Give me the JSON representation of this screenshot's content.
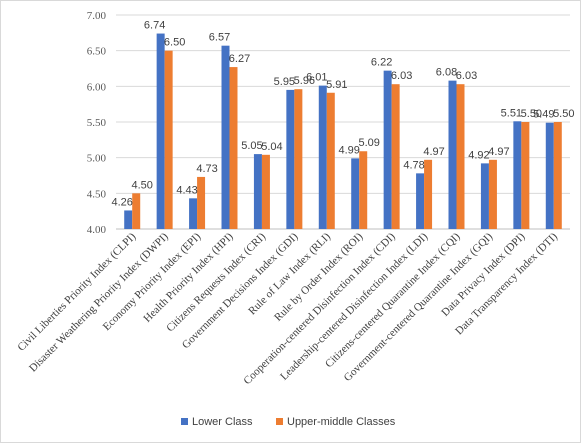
{
  "chart_data": {
    "type": "bar",
    "categories": [
      "Civil Liberties Priority Index (CLPI)",
      "Disaster Weathering Priority Index (DWPI)",
      "Economy Priority Index (EPI)",
      "Health Priority Index (HPI)",
      "Citizens Requests Index (CRI)",
      "Government Decisions Index (GDI)",
      "Rule of Law Index (RLI)",
      "Rule by Order Index (ROI)",
      "Cooperation-centered Disinfection Index (CDI)",
      "Leadership-centered Disinfection Index (LDI)",
      "Citizens-centered Quarantine Index (CQI)",
      "Government-centered Quarantine Index (GQI)",
      "Data Privacy Index (DPI)",
      "Data Transparency Index (DTI)"
    ],
    "series": [
      {
        "name": "Lower Class",
        "color": "#4472c4",
        "values": [
          4.26,
          6.74,
          4.43,
          6.57,
          5.05,
          5.95,
          6.01,
          4.99,
          6.22,
          4.78,
          6.08,
          4.92,
          5.51,
          5.49
        ]
      },
      {
        "name": "Upper-middle Classes",
        "color": "#ed7d31",
        "values": [
          4.5,
          6.5,
          4.73,
          6.27,
          5.04,
          5.96,
          5.91,
          5.09,
          6.03,
          4.97,
          6.03,
          4.97,
          5.5,
          5.5
        ]
      }
    ],
    "ylim": [
      4.0,
      7.0
    ],
    "yticks": [
      "4.00",
      "4.50",
      "5.00",
      "5.50",
      "6.00",
      "6.50",
      "7.00"
    ],
    "grid": true,
    "legend": "bottom",
    "title": "",
    "xlabel": "",
    "ylabel": ""
  }
}
